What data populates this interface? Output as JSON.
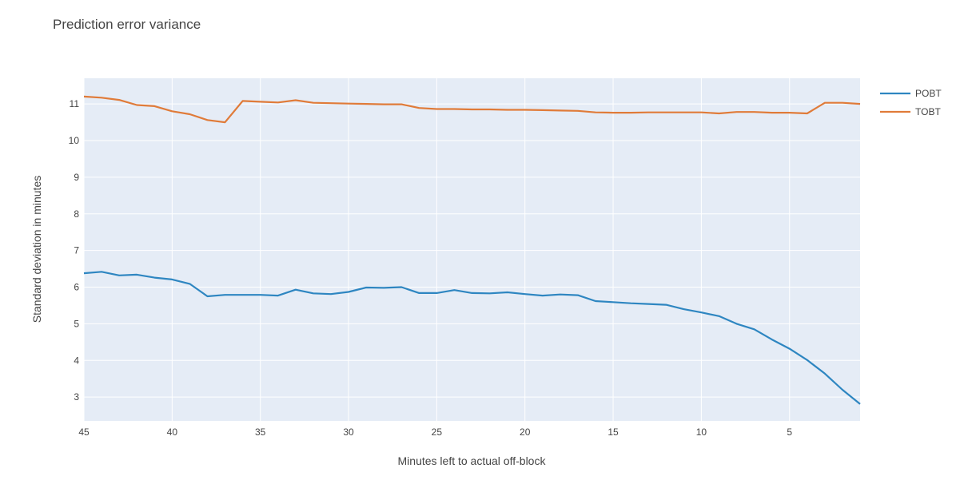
{
  "chart_data": {
    "type": "line",
    "title": "Prediction error variance",
    "xlabel": "Minutes left to actual off-block",
    "ylabel": "Standard deviation in minutes",
    "x_reversed": true,
    "xlim": [
      45,
      1
    ],
    "ylim": [
      2.35,
      11.7
    ],
    "x_ticks": [
      45,
      40,
      35,
      30,
      25,
      20,
      15,
      10,
      5
    ],
    "y_ticks": [
      3,
      4,
      5,
      6,
      7,
      8,
      9,
      10,
      11
    ],
    "grid": true,
    "legend_position": "top-right",
    "background": "#e5ecf6",
    "x": [
      45,
      44,
      43,
      42,
      41,
      40,
      39,
      38,
      37,
      36,
      35,
      34,
      33,
      32,
      31,
      30,
      29,
      28,
      27,
      26,
      25,
      24,
      23,
      22,
      21,
      20,
      19,
      18,
      17,
      16,
      15,
      14,
      13,
      12,
      11,
      10,
      9,
      8,
      7,
      6,
      5,
      4,
      3,
      2,
      1
    ],
    "series": [
      {
        "name": "POBT",
        "color": "#2e86c1",
        "values": [
          6.38,
          6.42,
          6.32,
          6.34,
          6.26,
          6.21,
          6.09,
          5.75,
          5.79,
          5.79,
          5.79,
          5.77,
          5.93,
          5.83,
          5.81,
          5.87,
          5.99,
          5.98,
          6.0,
          5.84,
          5.84,
          5.92,
          5.84,
          5.83,
          5.86,
          5.81,
          5.77,
          5.8,
          5.78,
          5.62,
          5.59,
          5.56,
          5.54,
          5.52,
          5.4,
          5.31,
          5.21,
          5.0,
          4.85,
          4.57,
          4.32,
          4.01,
          3.64,
          3.2,
          2.81
        ]
      },
      {
        "name": "TOBT",
        "color": "#e07b39",
        "values": [
          11.2,
          11.17,
          11.11,
          10.97,
          10.94,
          10.8,
          10.72,
          10.56,
          10.5,
          11.08,
          11.06,
          11.04,
          11.1,
          11.03,
          11.02,
          11.01,
          11.0,
          10.99,
          10.99,
          10.89,
          10.86,
          10.86,
          10.85,
          10.85,
          10.84,
          10.84,
          10.83,
          10.82,
          10.81,
          10.77,
          10.76,
          10.76,
          10.77,
          10.77,
          10.77,
          10.77,
          10.74,
          10.78,
          10.78,
          10.76,
          10.76,
          10.74,
          11.03,
          11.03,
          11.0
        ]
      }
    ]
  }
}
